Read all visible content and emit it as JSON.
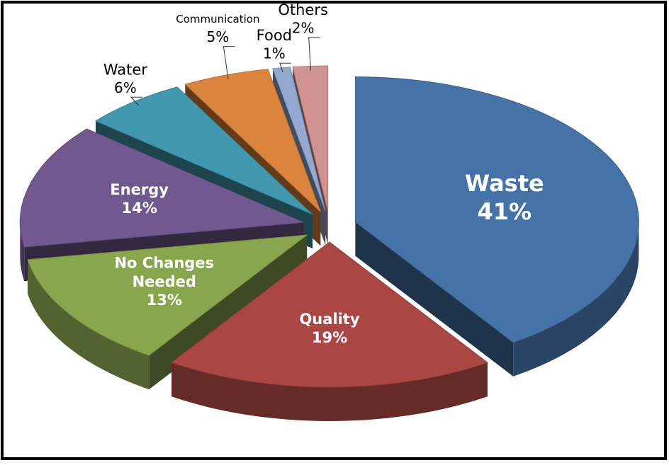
{
  "chart_data": {
    "type": "pie",
    "categories": [
      "Waste",
      "Quality",
      "No Changes Needed",
      "Energy",
      "Water",
      "Communication",
      "Food",
      "Others"
    ],
    "values": [
      41,
      19,
      13,
      14,
      6,
      5,
      1,
      2
    ],
    "value_labels": [
      "41%",
      "19%",
      "13%",
      "14%",
      "6%",
      "5%",
      "1%",
      "2%"
    ],
    "colors": [
      "#4572a7",
      "#aa4643",
      "#89a54e",
      "#71588f",
      "#4198af",
      "#db843d",
      "#93a9cf",
      "#d09392"
    ],
    "legend": false
  }
}
